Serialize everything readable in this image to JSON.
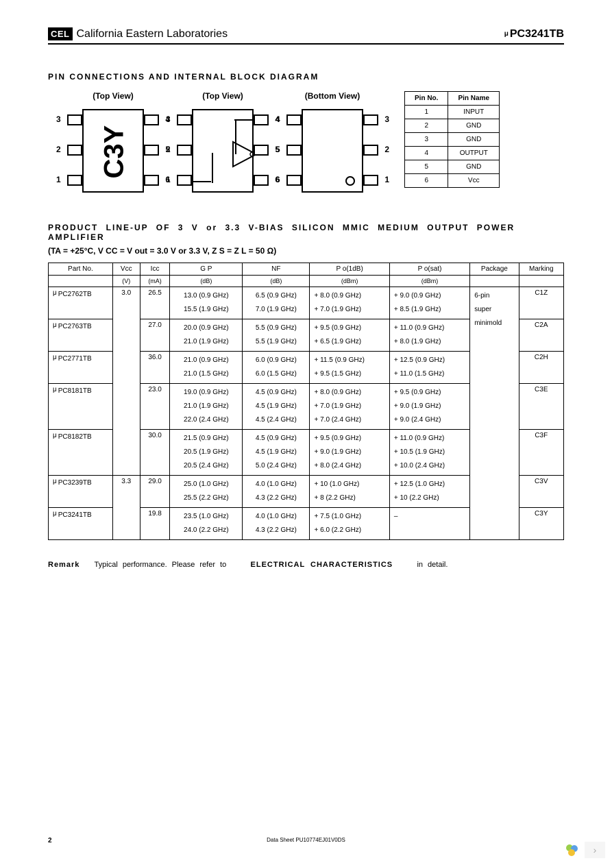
{
  "header": {
    "logo": "CEL",
    "company": "California Eastern Laboratories",
    "part": "PC3241TB"
  },
  "section1_title": "PIN CONNECTIONS AND INTERNAL BLOCK DIAGRAM",
  "views": {
    "top1": "(Top View)",
    "top2": "(Top View)",
    "bottom": "(Bottom View)",
    "chip_mark": "C3Y"
  },
  "pin_labels": {
    "left": [
      "3",
      "2",
      "1"
    ],
    "right": [
      "4",
      "5",
      "6"
    ]
  },
  "pin_table": {
    "headers": [
      "Pin No.",
      "Pin Name"
    ],
    "rows": [
      [
        "1",
        "INPUT"
      ],
      [
        "2",
        "GND"
      ],
      [
        "3",
        "GND"
      ],
      [
        "4",
        "OUTPUT"
      ],
      [
        "5",
        "GND"
      ],
      [
        "6",
        "Vcc"
      ]
    ]
  },
  "section2_title": "PRODUCT LINE-UP OF 3 V or 3.3 V-BIAS SILICON MMIC MEDIUM OUTPUT POWER AMPLIFIER",
  "conditions": "(TA = +25°C, V CC = V out = 3.0 V or 3.3 V, Z S = Z L = 50 Ω)",
  "lineup": {
    "headers": [
      "Part No.",
      "Vcc",
      "Icc",
      "G P",
      "NF",
      "P o(1dB)",
      "P o(sat)",
      "Package",
      "Marking"
    ],
    "units": [
      "",
      "(V)",
      "(mA)",
      "(dB)",
      "(dB)",
      "(dBm)",
      "(dBm)",
      "",
      ""
    ],
    "rows": [
      {
        "part": "PC2762TB",
        "vcc": "3.0",
        "icc": "26.5",
        "gp": "13.0 (0.9 GHz)\n15.5 (1.9 GHz)",
        "nf": "6.5 (0.9 GHz)\n7.0 (1.9 GHz)",
        "p1": "+ 8.0 (0.9 GHz)\n+ 7.0 (1.9 GHz)",
        "psat": "+ 9.0 (0.9 GHz)\n+ 8.5 (1.9 GHz)",
        "pkg": "6-pin\nsuper\nminimold",
        "mark": "C1Z"
      },
      {
        "part": "PC2763TB",
        "vcc": "",
        "icc": "27.0",
        "gp": "20.0 (0.9 GHz)\n21.0 (1.9 GHz)",
        "nf": "5.5 (0.9 GHz)\n5.5 (1.9 GHz)",
        "p1": "+ 9.5 (0.9 GHz)\n+ 6.5 (1.9 GHz)",
        "psat": "+ 11.0 (0.9 GHz)\n+ 8.0 (1.9 GHz)",
        "pkg": "",
        "mark": "C2A"
      },
      {
        "part": "PC2771TB",
        "vcc": "",
        "icc": "36.0",
        "gp": "21.0 (0.9 GHz)\n21.0 (1.5 GHz)",
        "nf": "6.0 (0.9 GHz)\n6.0 (1.5 GHz)",
        "p1": "+ 11.5 (0.9 GHz)\n+ 9.5 (1.5 GHz)",
        "psat": "+ 12.5 (0.9 GHz)\n+ 11.0 (1.5 GHz)",
        "pkg": "",
        "mark": "C2H"
      },
      {
        "part": "PC8181TB",
        "vcc": "",
        "icc": "23.0",
        "gp": "19.0 (0.9 GHz)\n21.0 (1.9 GHz)\n22.0 (2.4 GHz)",
        "nf": "4.5 (0.9 GHz)\n4.5 (1.9 GHz)\n4.5 (2.4 GHz)",
        "p1": "+ 8.0 (0.9 GHz)\n+ 7.0 (1.9 GHz)\n+ 7.0 (2.4 GHz)",
        "psat": "+ 9.5 (0.9 GHz)\n+ 9.0 (1.9 GHz)\n+ 9.0 (2.4 GHz)",
        "pkg": "",
        "mark": "C3E"
      },
      {
        "part": "PC8182TB",
        "vcc": "",
        "icc": "30.0",
        "gp": "21.5 (0.9 GHz)\n20.5 (1.9 GHz)\n20.5 (2.4 GHz)",
        "nf": "4.5 (0.9 GHz)\n4.5 (1.9 GHz)\n5.0 (2.4 GHz)",
        "p1": "+ 9.5 (0.9 GHz)\n+ 9.0 (1.9 GHz)\n+ 8.0 (2.4 GHz)",
        "psat": "+ 11.0 (0.9 GHz)\n+ 10.5 (1.9 GHz)\n+ 10.0 (2.4 GHz)",
        "pkg": "",
        "mark": "C3F"
      },
      {
        "part": "PC3239TB",
        "vcc": "3.3",
        "icc": "29.0",
        "gp": "25.0 (1.0 GHz)\n25.5 (2.2 GHz)",
        "nf": "4.0 (1.0 GHz)\n4.3 (2.2 GHz)",
        "p1": "+ 10 (1.0 GHz)\n+ 8 (2.2 GHz)",
        "psat": "+ 12.5 (1.0 GHz)\n+ 10 (2.2 GHz)",
        "pkg": "",
        "mark": "C3V"
      },
      {
        "part": "PC3241TB",
        "vcc": "",
        "icc": "19.8",
        "gp": "23.5 (1.0 GHz)\n24.0 (2.2 GHz)",
        "nf": "4.0 (1.0 GHz)\n4.3 (2.2 GHz)",
        "p1": "+ 7.5 (1.0 GHz)\n+ 6.0 (2.2 GHz)",
        "psat": "–",
        "pkg": "",
        "mark": "C3Y"
      }
    ]
  },
  "remark": {
    "label": "Remark",
    "text1": "Typical performance. Please refer to",
    "bold": "ELECTRICAL CHARACTERISTICS",
    "text2": "in detail."
  },
  "footer": {
    "page": "2",
    "doc": "Data Sheet PU10774EJ01V0DS"
  }
}
